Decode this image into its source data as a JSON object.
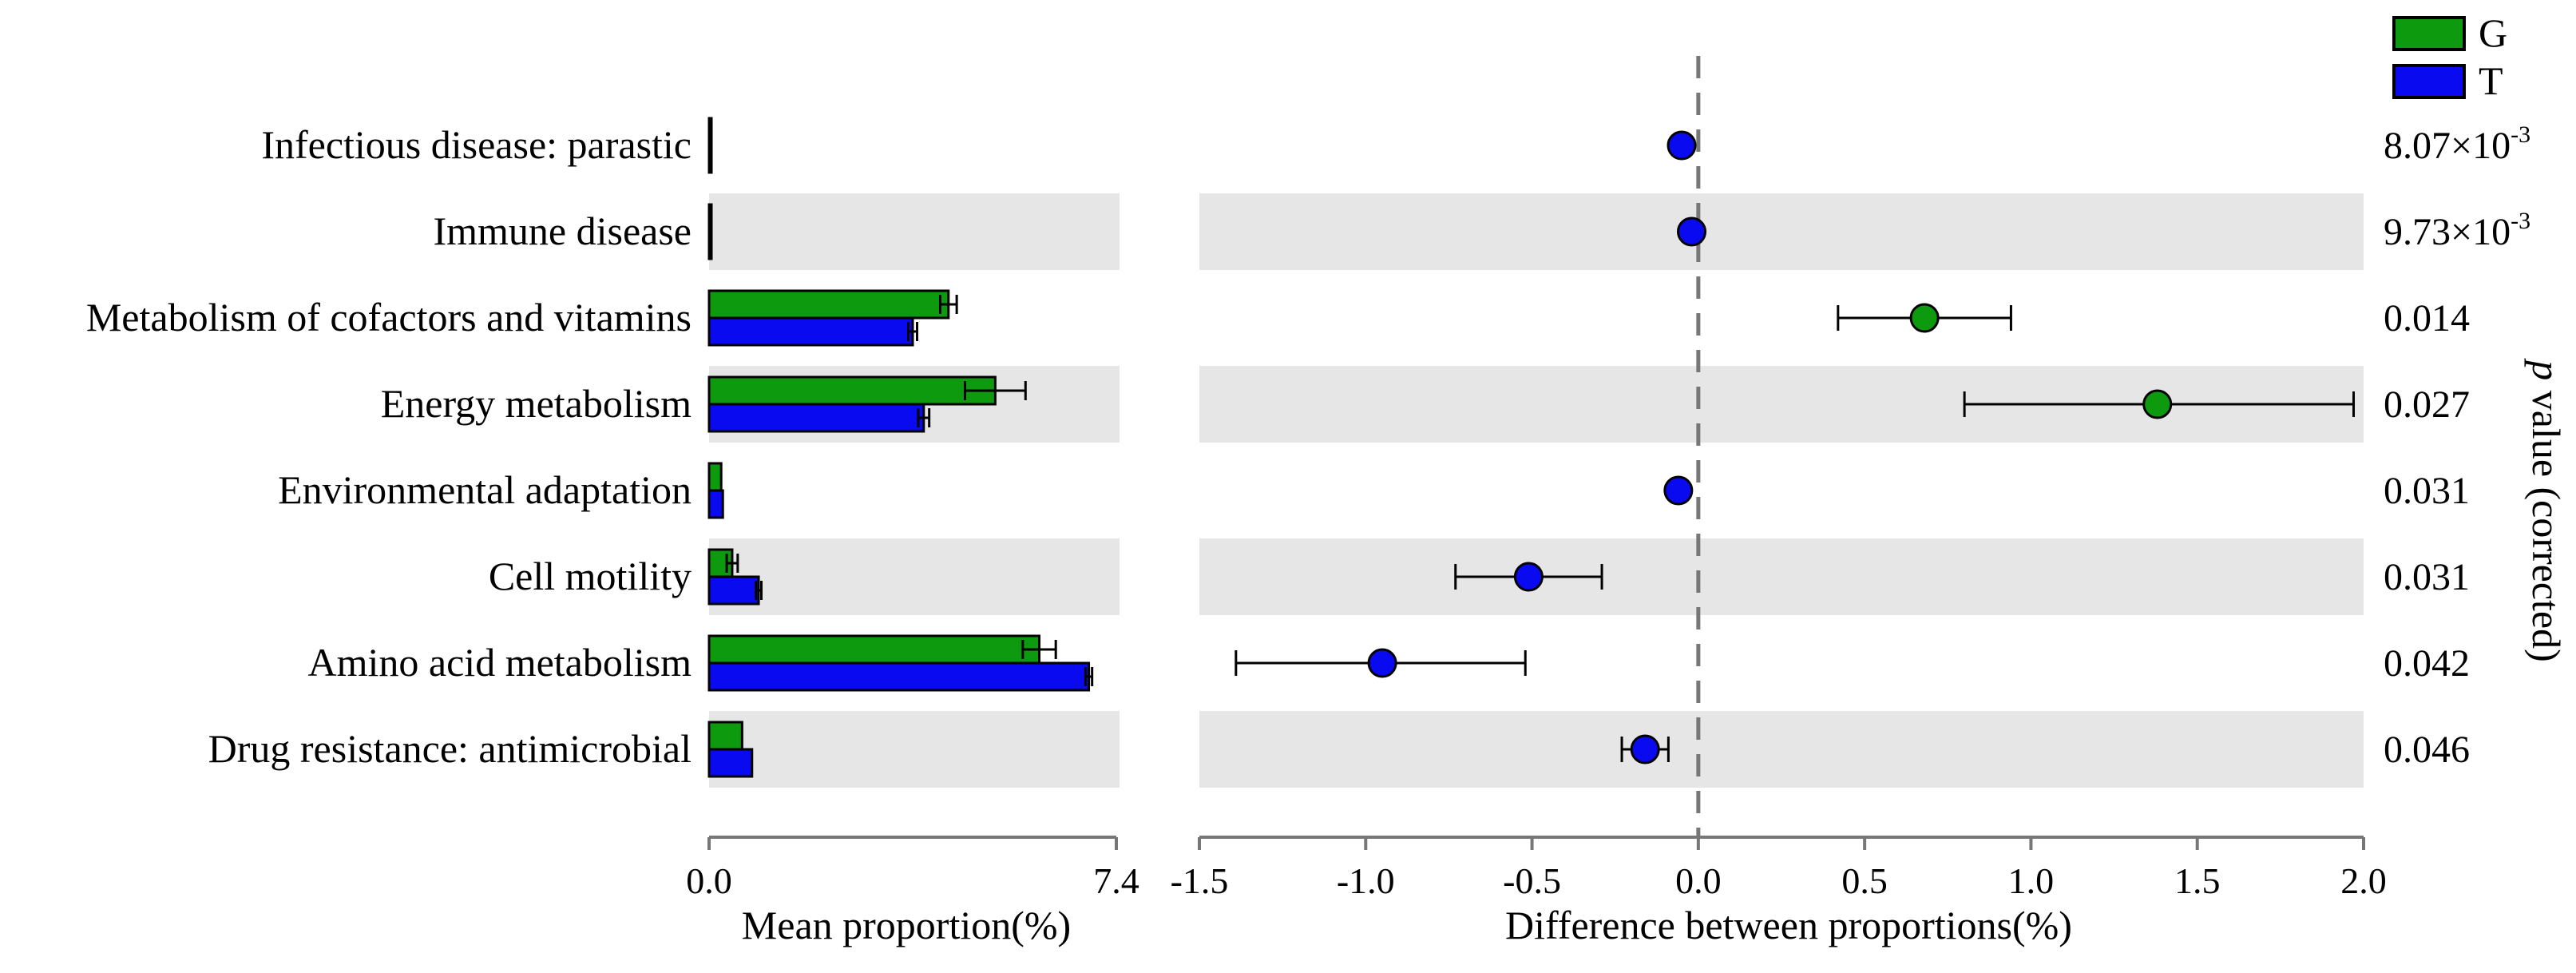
{
  "chart_data": {
    "type": "extended-error-bar",
    "legend": {
      "position": "top-right",
      "entries": [
        {
          "name": "G",
          "color": "#0e9a0e"
        },
        {
          "name": "T",
          "color": "#0a0af0"
        }
      ]
    },
    "categories": [
      "Infectious disease: parastic",
      "Immune disease",
      "Metabolism of cofactors and vitamins",
      "Energy metabolism",
      "Environmental adaptation",
      "Cell motility",
      "Amino acid metabolism",
      "Drug resistance: antimicrobial"
    ],
    "mean_proportion": {
      "xlabel": "Mean proportion(%)",
      "xlim": [
        0.0,
        7.4
      ],
      "tick_labels": [
        "0.0",
        "7.4"
      ],
      "series": [
        {
          "name": "G",
          "values": [
            0.02,
            0.01,
            4.35,
            5.2,
            0.22,
            0.42,
            6.0,
            0.6
          ],
          "errors": [
            0.0,
            0.0,
            0.15,
            0.55,
            0.0,
            0.1,
            0.3,
            0.0
          ]
        },
        {
          "name": "T",
          "values": [
            0.04,
            0.01,
            3.7,
            3.9,
            0.25,
            0.9,
            6.9,
            0.78
          ],
          "errors": [
            0.0,
            0.0,
            0.08,
            0.1,
            0.0,
            0.05,
            0.06,
            0.0
          ]
        }
      ]
    },
    "difference": {
      "xlabel": "Difference between proportions(%)",
      "xlim": [
        -1.5,
        2.0
      ],
      "ticks": [
        -1.5,
        -1.0,
        -0.5,
        0.0,
        0.5,
        1.0,
        1.5,
        2.0
      ],
      "tick_labels": [
        "-1.5",
        "-1.0",
        "-0.5",
        "0.0",
        "0.5",
        "1.0",
        "1.5",
        "2.0"
      ],
      "reference_line": 0.0,
      "points": [
        {
          "value": -0.05,
          "ci": [
            -0.05,
            -0.05
          ],
          "group": "T"
        },
        {
          "value": -0.02,
          "ci": [
            -0.02,
            -0.02
          ],
          "group": "T"
        },
        {
          "value": 0.68,
          "ci": [
            0.42,
            0.94
          ],
          "group": "G"
        },
        {
          "value": 1.38,
          "ci": [
            0.8,
            1.97
          ],
          "group": "G"
        },
        {
          "value": -0.06,
          "ci": [
            -0.06,
            -0.06
          ],
          "group": "T"
        },
        {
          "value": -0.51,
          "ci": [
            -0.73,
            -0.29
          ],
          "group": "T"
        },
        {
          "value": -0.95,
          "ci": [
            -1.39,
            -0.52
          ],
          "group": "T"
        },
        {
          "value": -0.16,
          "ci": [
            -0.23,
            -0.09
          ],
          "group": "T"
        }
      ]
    },
    "p_values": {
      "label_italic": "p",
      "label_rest": " value (corrected)",
      "values": [
        {
          "mantissa": "8.07×10",
          "exponent": "-3"
        },
        {
          "mantissa": "9.73×10",
          "exponent": "-3"
        },
        {
          "mantissa": "0.014",
          "exponent": ""
        },
        {
          "mantissa": "0.027",
          "exponent": ""
        },
        {
          "mantissa": "0.031",
          "exponent": ""
        },
        {
          "mantissa": "0.031",
          "exponent": ""
        },
        {
          "mantissa": "0.042",
          "exponent": ""
        },
        {
          "mantissa": "0.046",
          "exponent": ""
        }
      ]
    },
    "stripe_color": "#e6e6e6"
  }
}
